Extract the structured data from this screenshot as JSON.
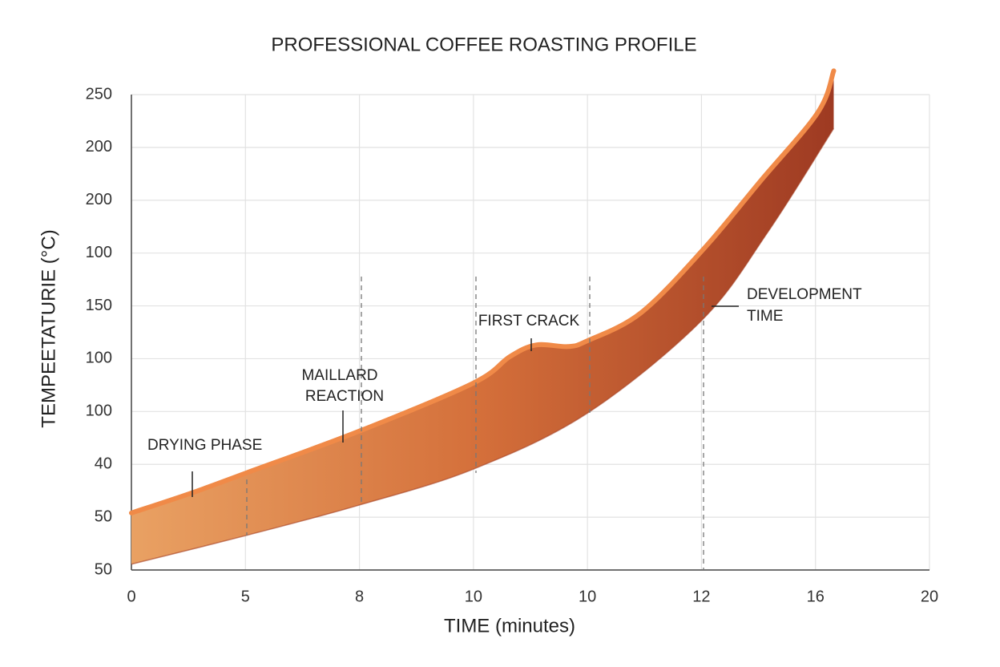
{
  "chart_data": {
    "type": "band",
    "title": "PROFESSIONAL COFFEE ROASTING PROFILE",
    "x_label": "TIME (minutes)",
    "y_label": "TEMPEETATURIE (°C)",
    "xlim": [
      0,
      7
    ],
    "xticks": [
      {
        "value": 0,
        "label": "0"
      },
      {
        "value": 1,
        "label": "5"
      },
      {
        "value": 2,
        "label": "8"
      },
      {
        "value": 3,
        "label": "10"
      },
      {
        "value": 4,
        "label": "10"
      },
      {
        "value": 5,
        "label": "12"
      },
      {
        "value": 6,
        "label": "16"
      },
      {
        "value": 7,
        "label": "20"
      }
    ],
    "ylim": [
      0,
      9
    ],
    "yticks": [
      {
        "value": 0,
        "label": "50"
      },
      {
        "value": 1,
        "label": "50"
      },
      {
        "value": 2,
        "label": "40"
      },
      {
        "value": 3,
        "label": "100"
      },
      {
        "value": 4,
        "label": "100"
      },
      {
        "value": 5,
        "label": "150"
      },
      {
        "value": 6,
        "label": "100"
      },
      {
        "value": 7,
        "label": "200"
      },
      {
        "value": 8,
        "label": "200"
      },
      {
        "value": 9,
        "label": "250"
      }
    ],
    "grid": true,
    "upper": {
      "color": "#f08a48",
      "x": [
        0,
        0.53,
        1.01,
        2,
        3,
        3.32,
        3.55,
        3.83,
        4,
        4.47,
        5.02,
        5.52,
        6.02,
        6.16
      ],
      "values": [
        1.08,
        1.46,
        1.84,
        2.63,
        3.54,
        4.04,
        4.26,
        4.23,
        4.34,
        4.87,
        6.08,
        7.37,
        8.66,
        9.45
      ]
    },
    "lower": {
      "color": "#a33e22",
      "x": [
        0,
        1,
        2,
        3,
        4,
        5,
        5.58,
        6.16
      ],
      "values": [
        0.11,
        0.65,
        1.23,
        1.91,
        2.97,
        4.72,
        6.39,
        8.36
      ]
    },
    "annotations": [
      [
        "DRYING PHASE"
      ],
      [
        "MAILLARD",
        "REACTION"
      ],
      [
        "FIRST CRACK"
      ],
      [
        "DEVELOPMENT",
        "TIME"
      ]
    ]
  }
}
